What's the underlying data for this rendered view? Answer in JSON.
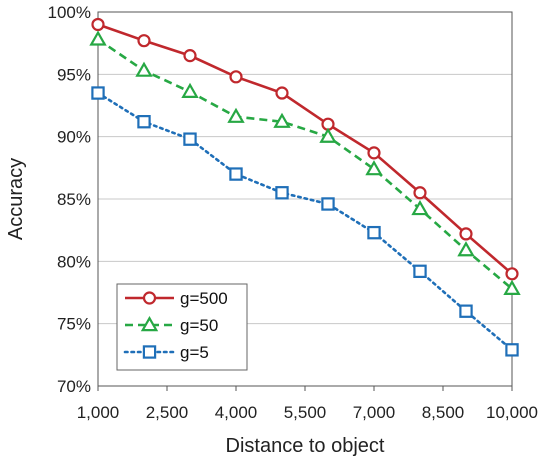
{
  "chart_data": {
    "type": "line",
    "title": "",
    "xlabel": "Distance to object",
    "ylabel": "Accuracy",
    "x_tick_labels": [
      "1,000",
      "2,500",
      "4,000",
      "5,500",
      "7,000",
      "8,500",
      "10,000"
    ],
    "y_tick_labels": [
      "70%",
      "75%",
      "80%",
      "85%",
      "90%",
      "95%",
      "100%"
    ],
    "y_ticks": [
      70,
      75,
      80,
      85,
      90,
      95,
      100
    ],
    "ylim": [
      70,
      100
    ],
    "xlim": [
      1000,
      10000
    ],
    "grid": "horizontal",
    "legend_position": "bottom-left",
    "x": [
      1000,
      2000,
      3000,
      4000,
      5000,
      6000,
      7000,
      8000,
      9000,
      10000
    ],
    "series": [
      {
        "name": "g=500",
        "color": "#c0282d",
        "marker": "circle",
        "line_style": "solid",
        "values": [
          99.0,
          97.7,
          96.5,
          94.8,
          93.5,
          91.0,
          88.7,
          85.5,
          82.2,
          79.0
        ]
      },
      {
        "name": "g=50",
        "color": "#27a844",
        "marker": "triangle",
        "line_style": "dashed",
        "values": [
          97.8,
          95.3,
          93.6,
          91.6,
          91.2,
          90.0,
          87.4,
          84.2,
          80.9,
          77.8
        ]
      },
      {
        "name": "g=5",
        "color": "#1f6fb8",
        "marker": "square",
        "line_style": "dotted",
        "values": [
          93.5,
          91.2,
          89.8,
          87.0,
          85.5,
          84.6,
          82.3,
          79.2,
          76.0,
          72.9
        ]
      }
    ]
  }
}
